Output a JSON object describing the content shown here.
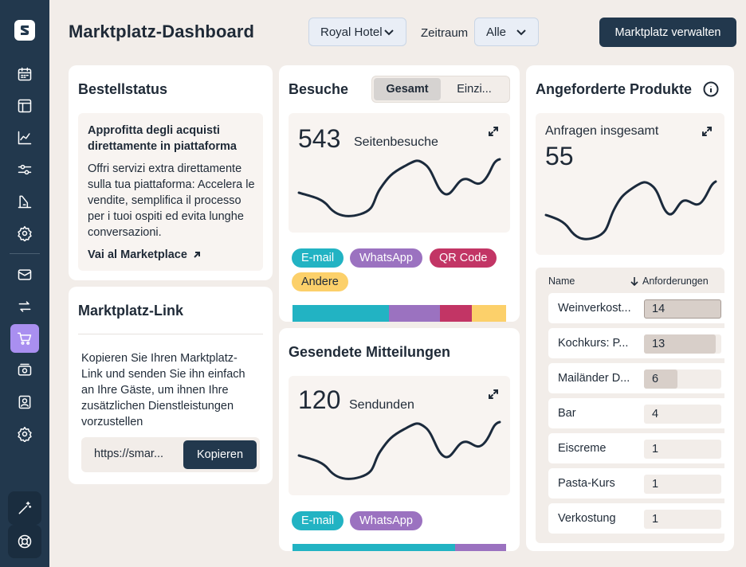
{
  "header": {
    "title": "Marktplatz-Dashboard",
    "hotel_select": "Royal Hotel",
    "zeitraum_label": "Zeitraum",
    "zeitraum_select": "Alle",
    "manage_button": "Marktplatz verwalten"
  },
  "sidebar": {
    "items": [
      "logo-icon",
      "calendar-icon",
      "layout-icon",
      "chart-line-icon",
      "sliders-icon",
      "building-icon",
      "gear-icon",
      "mail-icon",
      "swap-icon",
      "cart-icon",
      "money-icon",
      "contact-icon",
      "settings-icon",
      "wand-icon",
      "lifebuoy-icon"
    ],
    "active": "cart-icon"
  },
  "bestellstatus": {
    "title": "Bestellstatus",
    "info_title": "Approfitta degli acquisti direttamente in piattaforma",
    "info_body": "Offri servizi extra direttamente sulla tua piattaforma: Accelera le vendite, semplifica il processo per i tuoi ospiti ed evita lunghe conversazioni.",
    "link": "Vai al Marketplace"
  },
  "marktplatz_link": {
    "title": "Marktplatz-Link",
    "text": "Kopieren Sie Ihren Marktplatz-Link und senden Sie ihn einfach an Ihre Gäste, um ihnen Ihre zusätzlichen Dienstleistungen vorzustellen",
    "url": "https://smar...",
    "copy_button": "Kopieren"
  },
  "besuche": {
    "title": "Besuche",
    "seg": [
      "Gesamt",
      "Einzi..."
    ],
    "count": "543",
    "unit": "Seitenbesuche",
    "tags": [
      {
        "label": "E-mail",
        "bg": "#22b3c3",
        "fg": "#ffffff"
      },
      {
        "label": "WhatsApp",
        "bg": "#9b72c0",
        "fg": "#ffffff"
      },
      {
        "label": "QR Code",
        "bg": "#c23565",
        "fg": "#ffffff"
      },
      {
        "label": "Andere",
        "bg": "#fcd06a",
        "fg": "#1f2a37"
      }
    ],
    "shares": [
      0.45,
      0.24,
      0.15,
      0.16
    ]
  },
  "mitteilungen": {
    "title": "Gesendete Mitteilungen",
    "count": "120",
    "unit": "Sendunden",
    "tags": [
      {
        "label": "E-mail",
        "bg": "#22b3c3",
        "fg": "#ffffff"
      },
      {
        "label": "WhatsApp",
        "bg": "#9b72c0",
        "fg": "#ffffff"
      }
    ],
    "shares": [
      0.76,
      0.24
    ]
  },
  "produkte": {
    "title": "Angeforderte Produkte",
    "total_label": "Anfragen insgesamt",
    "total": "55",
    "col_name": "Name",
    "col_count": "Anforderungen",
    "rows": [
      {
        "name": "Weinverkost...",
        "value": 14
      },
      {
        "name": "Kochkurs: P...",
        "value": 13
      },
      {
        "name": "Mailänder D...",
        "value": 6
      },
      {
        "name": "Bar",
        "value": 4
      },
      {
        "name": "Eiscreme",
        "value": 1
      },
      {
        "name": "Pasta-Kurs",
        "value": 1
      },
      {
        "name": "Verkostung",
        "value": 1
      }
    ]
  }
}
